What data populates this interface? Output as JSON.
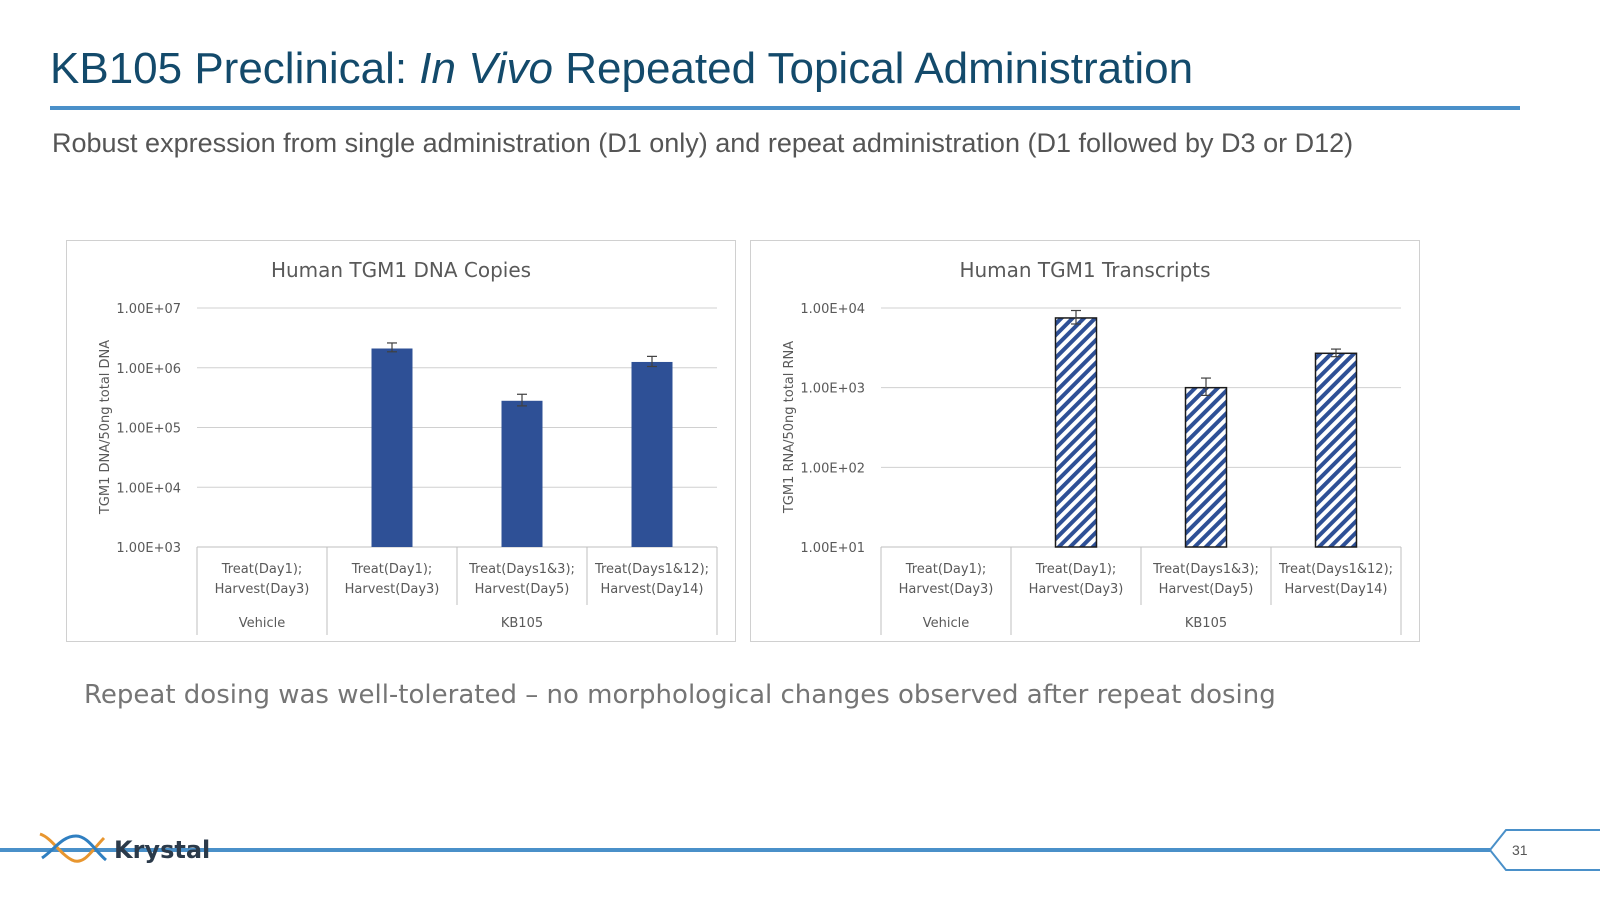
{
  "slide": {
    "title_prefix": "KB105 Preclinical: ",
    "title_italic": "In Vivo",
    "title_suffix": " Repeated Topical Administration",
    "subtitle": "Robust expression from single administration (D1 only) and repeat administration (D1 followed by D3 or D12)",
    "footnote": "Repeat dosing was well-tolerated – no morphological changes observed after repeat dosing",
    "logo_text": "Krystal",
    "page_number": "31"
  },
  "colors": {
    "title": "#134a6b",
    "accent_line": "#4a90c9",
    "bar_fill": "#2e5096",
    "hatch": "#2e5096"
  },
  "chart_data": [
    {
      "type": "bar",
      "title": "Human TGM1 DNA Copies",
      "ylabel": "TGM1 DNA/50ng total DNA",
      "yscale": "log",
      "ylim": [
        1000,
        10000000
      ],
      "ytick_labels": [
        "1.00E+03",
        "1.00E+04",
        "1.00E+05",
        "1.00E+06",
        "1.00E+07"
      ],
      "style": "solid",
      "grid": true,
      "categories": [
        {
          "line1": "Treat(Day1);",
          "line2": "Harvest(Day3)"
        },
        {
          "line1": "Treat(Day1);",
          "line2": "Harvest(Day3)"
        },
        {
          "line1": "Treat(Days1&3);",
          "line2": "Harvest(Day5)"
        },
        {
          "line1": "Treat(Days1&12);",
          "line2": "Harvest(Day14)"
        }
      ],
      "groups": [
        {
          "label": "Vehicle",
          "span": 1
        },
        {
          "label": "KB105",
          "span": 3
        }
      ],
      "values": [
        null,
        2100000,
        280000,
        1250000
      ],
      "error_high": [
        null,
        2600000,
        360000,
        1550000
      ],
      "error_low": [
        null,
        1850000,
        230000,
        1050000
      ]
    },
    {
      "type": "bar",
      "title": "Human TGM1 Transcripts",
      "ylabel": "TGM1 RNA/50ng total RNA",
      "yscale": "log",
      "ylim": [
        10,
        10000
      ],
      "ytick_labels": [
        "1.00E+01",
        "1.00E+02",
        "1.00E+03",
        "1.00E+04"
      ],
      "style": "hatched",
      "grid": true,
      "categories": [
        {
          "line1": "Treat(Day1);",
          "line2": "Harvest(Day3)"
        },
        {
          "line1": "Treat(Day1);",
          "line2": "Harvest(Day3)"
        },
        {
          "line1": "Treat(Days1&3);",
          "line2": "Harvest(Day5)"
        },
        {
          "line1": "Treat(Days1&12);",
          "line2": "Harvest(Day14)"
        }
      ],
      "groups": [
        {
          "label": "Vehicle",
          "span": 1
        },
        {
          "label": "KB105",
          "span": 3
        }
      ],
      "values": [
        null,
        7500,
        1000,
        2700
      ],
      "error_high": [
        null,
        9300,
        1320,
        3050
      ],
      "error_low": [
        null,
        6300,
        800,
        2450
      ]
    }
  ]
}
